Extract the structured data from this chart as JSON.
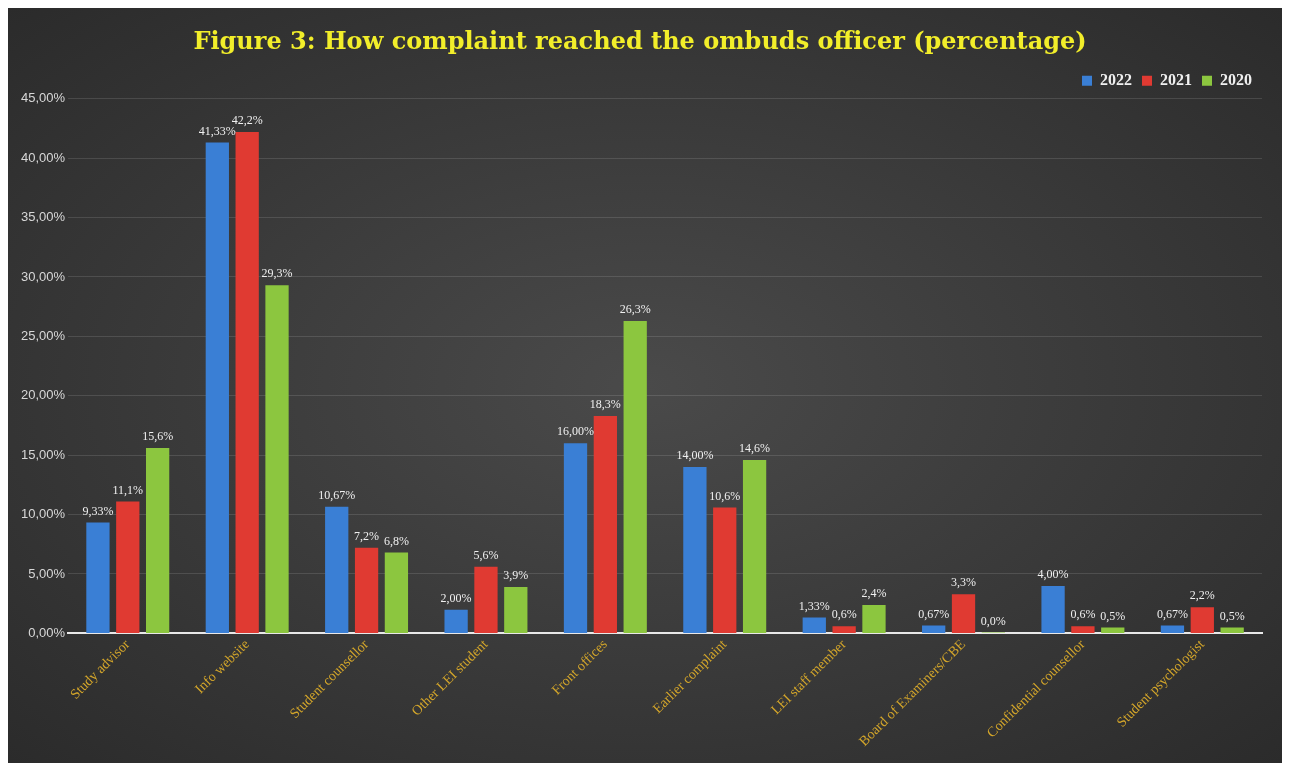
{
  "chart_data": {
    "type": "bar",
    "title": "Figure 3: How complaint reached the ombuds officer (percentage)",
    "categories": [
      "Study advisor",
      "Info website",
      "Student counsellor",
      "Other LEI student",
      "Front offices",
      "Earlier complaint",
      "LEI staff member",
      "Board of Examiners/CBE",
      "Confidential counsellor",
      "Student psychologist"
    ],
    "series": [
      {
        "name": "2022",
        "color": "#3a7fd5",
        "values": [
          9.33,
          41.33,
          10.67,
          2.0,
          16.0,
          14.0,
          1.33,
          0.67,
          4.0,
          0.67
        ],
        "value_labels": [
          "9,33%",
          "41,33%",
          "10,67%",
          "2,00%",
          "16,00%",
          "14,00%",
          "1,33%",
          "0,67%",
          "4,00%",
          "0,67%"
        ]
      },
      {
        "name": "2021",
        "color": "#e03a32",
        "values": [
          11.1,
          42.2,
          7.2,
          5.6,
          18.3,
          10.6,
          0.6,
          3.3,
          0.6,
          2.2
        ],
        "value_labels": [
          "11,1%",
          "42,2%",
          "7,2%",
          "5,6%",
          "18,3%",
          "10,6%",
          "0,6%",
          "3,3%",
          "0,6%",
          "2,2%"
        ]
      },
      {
        "name": "2020",
        "color": "#8cc63f",
        "values": [
          15.6,
          29.3,
          6.8,
          3.9,
          26.3,
          14.6,
          2.4,
          0.0,
          0.5,
          0.5
        ],
        "value_labels": [
          "15,6%",
          "29,3%",
          "6,8%",
          "3,9%",
          "26,3%",
          "14,6%",
          "2,4%",
          "0,0%",
          "0,5%",
          "0,5%"
        ]
      }
    ],
    "ylim": [
      0,
      45
    ],
    "yticks": [
      {
        "value": 0,
        "label": "0,00%"
      },
      {
        "value": 5,
        "label": "5,00%"
      },
      {
        "value": 10,
        "label": "10,00%"
      },
      {
        "value": 15,
        "label": "15,00%"
      },
      {
        "value": 20,
        "label": "20,00%"
      },
      {
        "value": 25,
        "label": "25,00%"
      },
      {
        "value": 30,
        "label": "30,00%"
      },
      {
        "value": 35,
        "label": "35,00%"
      },
      {
        "value": 40,
        "label": "40,00%"
      },
      {
        "value": 45,
        "label": "45,00%"
      }
    ],
    "grid": "y",
    "legend": "top right"
  }
}
